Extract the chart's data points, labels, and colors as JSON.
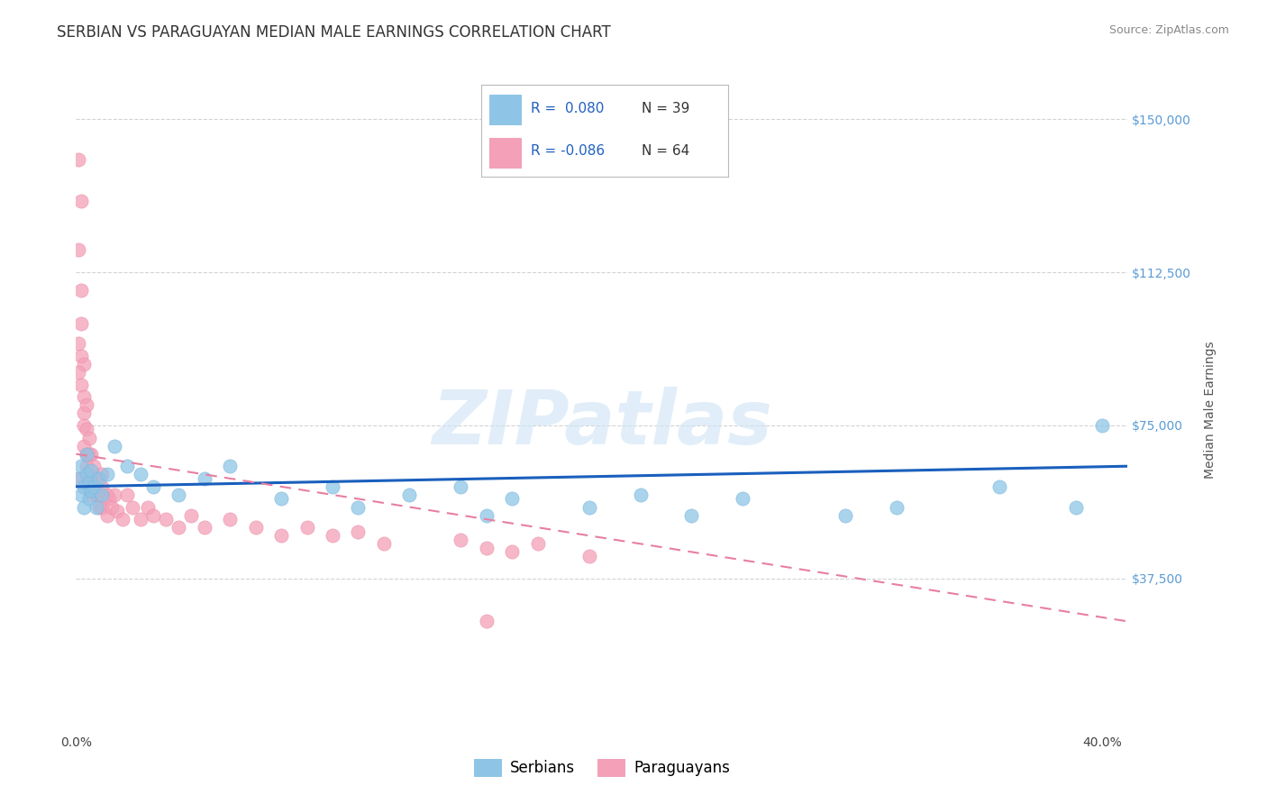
{
  "title": "SERBIAN VS PARAGUAYAN MEDIAN MALE EARNINGS CORRELATION CHART",
  "source_text": "Source: ZipAtlas.com",
  "ylabel": "Median Male Earnings",
  "xlim": [
    0.0,
    0.41
  ],
  "ylim": [
    0,
    157500
  ],
  "yticks": [
    0,
    37500,
    75000,
    112500,
    150000
  ],
  "ytick_labels": [
    "",
    "$37,500",
    "$75,000",
    "$112,500",
    "$150,000"
  ],
  "xticks": [
    0.0,
    0.1,
    0.2,
    0.3,
    0.4
  ],
  "xtick_labels": [
    "0.0%",
    "",
    "",
    "",
    "40.0%"
  ],
  "serbian_color": "#8ec5e6",
  "serbian_edge": "#7ab8de",
  "paraguayan_color": "#f4a0b8",
  "paraguayan_edge": "#ec8fab",
  "trend_blue": "#1a5fbd",
  "trend_pink": "#e87fa0",
  "serbian_R": 0.08,
  "serbian_N": 39,
  "paraguayan_R": -0.086,
  "paraguayan_N": 64,
  "watermark": "ZIPatlas",
  "title_fontsize": 12,
  "axis_label_fontsize": 10,
  "tick_label_fontsize": 10,
  "background_color": "#ffffff",
  "grid_color": "#c8c8c8",
  "axis_label_color": "#555555",
  "tick_color_y": "#5b9bd5",
  "tick_color_x": "#444444",
  "title_color": "#333333",
  "legend_R_color": "#2060c0",
  "legend_N_color": "#333333",
  "serbian_x": [
    0.001,
    0.002,
    0.002,
    0.003,
    0.003,
    0.004,
    0.004,
    0.005,
    0.005,
    0.006,
    0.006,
    0.007,
    0.008,
    0.009,
    0.01,
    0.012,
    0.015,
    0.02,
    0.025,
    0.03,
    0.04,
    0.05,
    0.06,
    0.08,
    0.1,
    0.11,
    0.13,
    0.15,
    0.16,
    0.17,
    0.2,
    0.22,
    0.24,
    0.26,
    0.3,
    0.32,
    0.36,
    0.39,
    0.4
  ],
  "serbian_y": [
    62000,
    58000,
    65000,
    60000,
    55000,
    63000,
    68000,
    57000,
    61000,
    59000,
    64000,
    60000,
    55000,
    62000,
    58000,
    63000,
    70000,
    65000,
    63000,
    60000,
    58000,
    62000,
    65000,
    57000,
    60000,
    55000,
    58000,
    60000,
    53000,
    57000,
    55000,
    58000,
    53000,
    57000,
    53000,
    55000,
    60000,
    55000,
    75000
  ],
  "paraguayan_x": [
    0.001,
    0.001,
    0.001,
    0.002,
    0.002,
    0.002,
    0.002,
    0.003,
    0.003,
    0.003,
    0.003,
    0.003,
    0.004,
    0.004,
    0.004,
    0.004,
    0.005,
    0.005,
    0.005,
    0.005,
    0.006,
    0.006,
    0.006,
    0.007,
    0.007,
    0.008,
    0.008,
    0.009,
    0.009,
    0.01,
    0.01,
    0.01,
    0.012,
    0.012,
    0.013,
    0.014,
    0.015,
    0.016,
    0.018,
    0.02,
    0.022,
    0.025,
    0.028,
    0.03,
    0.035,
    0.04,
    0.045,
    0.05,
    0.06,
    0.07,
    0.08,
    0.09,
    0.1,
    0.11,
    0.12,
    0.15,
    0.16,
    0.17,
    0.18,
    0.2,
    0.001,
    0.001,
    0.002,
    0.16
  ],
  "paraguayan_y": [
    140000,
    118000,
    95000,
    108000,
    100000,
    92000,
    85000,
    90000,
    82000,
    78000,
    75000,
    70000,
    80000,
    74000,
    68000,
    65000,
    72000,
    68000,
    63000,
    60000,
    68000,
    62000,
    58000,
    65000,
    60000,
    62000,
    58000,
    58000,
    55000,
    63000,
    60000,
    55000,
    58000,
    53000,
    57000,
    55000,
    58000,
    54000,
    52000,
    58000,
    55000,
    52000,
    55000,
    53000,
    52000,
    50000,
    53000,
    50000,
    52000,
    50000,
    48000,
    50000,
    48000,
    49000,
    46000,
    47000,
    45000,
    44000,
    46000,
    43000,
    88000,
    62000,
    130000,
    27000
  ],
  "serbian_trend_x": [
    0.0,
    0.41
  ],
  "serbian_trend_y": [
    60000,
    65000
  ],
  "paraguayan_trend_x": [
    0.0,
    0.41
  ],
  "paraguayan_trend_y": [
    68000,
    27000
  ]
}
